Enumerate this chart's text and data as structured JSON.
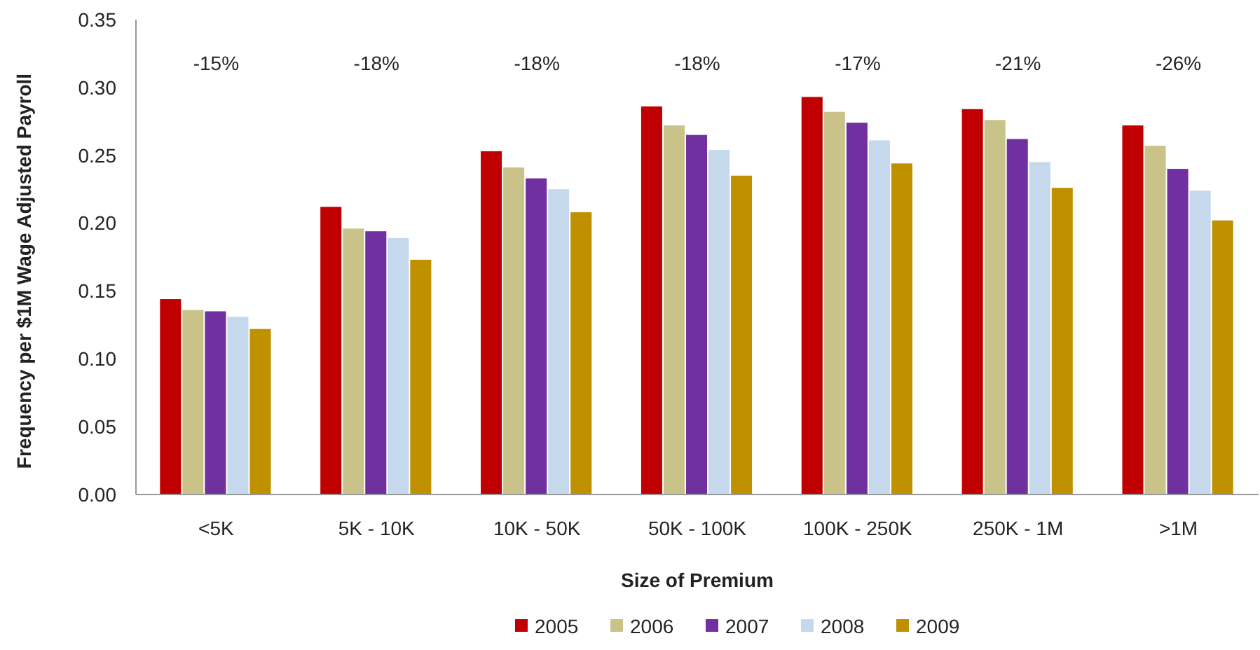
{
  "chart_data": {
    "type": "bar",
    "xlabel": "Size of Premium",
    "ylabel": "Frequency per $1M Wage Adjusted Payroll",
    "categories": [
      "<5K",
      "5K - 10K",
      "10K - 50K",
      "50K - 100K",
      "100K - 250K",
      "250K - 1M",
      ">1M"
    ],
    "series": [
      {
        "name": "2005",
        "color": "#c00000",
        "values": [
          0.144,
          0.212,
          0.253,
          0.286,
          0.293,
          0.284,
          0.272
        ]
      },
      {
        "name": "2006",
        "color": "#c9c38a",
        "values": [
          0.136,
          0.196,
          0.241,
          0.272,
          0.282,
          0.276,
          0.257
        ]
      },
      {
        "name": "2007",
        "color": "#7030a0",
        "values": [
          0.135,
          0.194,
          0.233,
          0.265,
          0.274,
          0.262,
          0.24
        ]
      },
      {
        "name": "2008",
        "color": "#c6d9ec",
        "values": [
          0.131,
          0.189,
          0.225,
          0.254,
          0.261,
          0.245,
          0.224
        ]
      },
      {
        "name": "2009",
        "color": "#bf9000",
        "values": [
          0.122,
          0.173,
          0.208,
          0.235,
          0.244,
          0.226,
          0.202
        ]
      }
    ],
    "ylim": [
      0,
      0.35
    ],
    "yticks": [
      {
        "value": 0,
        "label": "0.00"
      },
      {
        "value": 0.05,
        "label": "0.05"
      },
      {
        "value": 0.1,
        "label": "0.10"
      },
      {
        "value": 0.15,
        "label": "0.15"
      },
      {
        "value": 0.2,
        "label": "0.20"
      },
      {
        "value": 0.25,
        "label": "0.25"
      },
      {
        "value": 0.3,
        "label": "0.30"
      },
      {
        "value": 0.35,
        "label": "0.35"
      }
    ],
    "grid": false,
    "legend": "bottom",
    "annotations": [
      "-15%",
      "-18%",
      "-18%",
      "-18%",
      "-17%",
      "-21%",
      "-26%"
    ]
  }
}
